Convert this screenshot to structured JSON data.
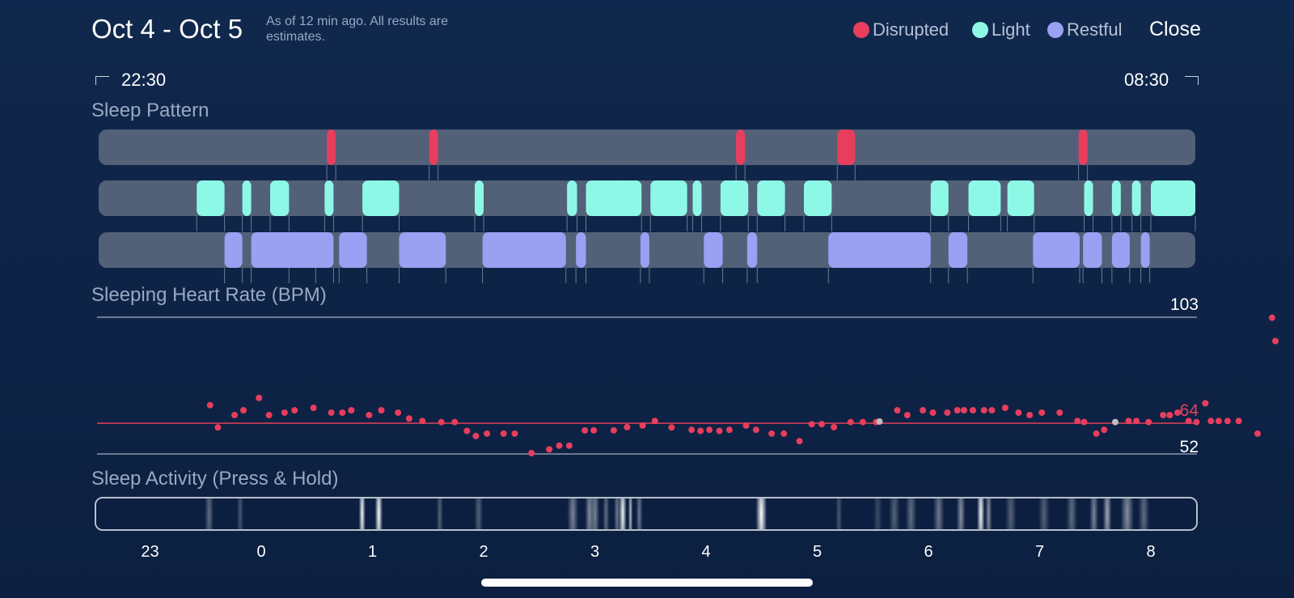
{
  "header": {
    "date_range": "Oct 4 - Oct 5",
    "note": "As of 12 min ago. All results are estimates.",
    "close_label": "Close"
  },
  "legend": [
    {
      "label": "Disrupted",
      "color": "#e83e5d"
    },
    {
      "label": "Light",
      "color": "#8ef8e6"
    },
    {
      "label": "Restful",
      "color": "#9aa0f2"
    }
  ],
  "time_range": {
    "start": "22:30",
    "end": "08:30"
  },
  "sleep_pattern": {
    "title": "Sleep Pattern",
    "disrupted": [
      [
        0.59,
        0.67
      ],
      [
        1.51,
        1.59
      ],
      [
        4.27,
        4.35
      ],
      [
        5.18,
        5.34
      ],
      [
        7.35,
        7.43
      ]
    ],
    "light": [
      [
        -0.58,
        -0.33
      ],
      [
        -0.17,
        -0.09
      ],
      [
        0.08,
        0.25
      ],
      [
        0.57,
        0.65
      ],
      [
        0.91,
        1.24
      ],
      [
        1.92,
        2.0
      ],
      [
        2.75,
        2.84
      ],
      [
        2.92,
        3.42
      ],
      [
        3.5,
        3.83
      ],
      [
        3.88,
        3.96
      ],
      [
        4.13,
        4.38
      ],
      [
        4.46,
        4.71
      ],
      [
        4.88,
        5.13
      ],
      [
        6.02,
        6.18
      ],
      [
        6.36,
        6.65
      ],
      [
        6.71,
        6.95
      ],
      [
        7.4,
        7.48
      ],
      [
        7.65,
        7.73
      ],
      [
        7.83,
        7.91
      ],
      [
        8.0,
        8.67
      ]
    ],
    "restful": [
      [
        -0.33,
        -0.17
      ],
      [
        -0.09,
        0.49
      ],
      [
        0.25,
        0.65
      ],
      [
        0.7,
        0.95
      ],
      [
        1.24,
        1.66
      ],
      [
        1.99,
        2.74
      ],
      [
        2.83,
        2.92
      ],
      [
        3.41,
        3.49
      ],
      [
        3.98,
        4.15
      ],
      [
        4.37,
        4.46
      ],
      [
        5.1,
        6.02
      ],
      [
        6.18,
        6.35
      ],
      [
        6.94,
        7.36
      ],
      [
        7.39,
        7.56
      ],
      [
        7.65,
        7.81
      ],
      [
        7.91,
        7.99
      ]
    ]
  },
  "heart_rate": {
    "title": "Sleeping Heart Rate (BPM)",
    "max_label": "103",
    "avg_label": "64",
    "min_label": "52",
    "max": 103,
    "avg": 64,
    "min": 52,
    "points": [
      [
        -0.46,
        70.2
      ],
      [
        -0.39,
        61.9
      ],
      [
        -0.24,
        66.5
      ],
      [
        -0.16,
        68.3
      ],
      [
        -0.02,
        72.9
      ],
      [
        0.07,
        66.5
      ],
      [
        0.21,
        67.4
      ],
      [
        0.3,
        68.3
      ],
      [
        0.47,
        69.2
      ],
      [
        0.63,
        67.4
      ],
      [
        0.73,
        67.4
      ],
      [
        0.81,
        68.3
      ],
      [
        0.97,
        66.5
      ],
      [
        1.08,
        68.3
      ],
      [
        1.23,
        67.4
      ],
      [
        1.33,
        65.2
      ],
      [
        1.45,
        64.3
      ],
      [
        1.62,
        63.9
      ],
      [
        1.74,
        63.9
      ],
      [
        1.85,
        60.6
      ],
      [
        1.93,
        58.7
      ],
      [
        2.03,
        59.6
      ],
      [
        2.18,
        59.6
      ],
      [
        2.28,
        59.6
      ],
      [
        2.43,
        52.3
      ],
      [
        2.59,
        53.7
      ],
      [
        2.68,
        55.1
      ],
      [
        2.77,
        55.1
      ],
      [
        2.91,
        60.8
      ],
      [
        2.99,
        60.8
      ],
      [
        3.17,
        60.8
      ],
      [
        3.29,
        62.0
      ],
      [
        3.43,
        62.6
      ],
      [
        3.54,
        64.3
      ],
      [
        3.69,
        61.9
      ],
      [
        3.87,
        61.0
      ],
      [
        3.95,
        60.6
      ],
      [
        4.03,
        61.0
      ],
      [
        4.12,
        60.6
      ],
      [
        4.21,
        61.0
      ],
      [
        4.36,
        62.6
      ],
      [
        4.45,
        61.0
      ],
      [
        4.59,
        59.6
      ],
      [
        4.7,
        59.6
      ],
      [
        4.84,
        56.8
      ],
      [
        4.95,
        63.1
      ],
      [
        5.04,
        63.1
      ],
      [
        5.15,
        62.0
      ],
      [
        5.3,
        63.9
      ],
      [
        5.41,
        63.9
      ],
      [
        5.53,
        63.9
      ],
      [
        5.56,
        64.1,
        "#bdbdbd"
      ],
      [
        5.72,
        68.3
      ],
      [
        5.81,
        66.5
      ],
      [
        5.95,
        68.3
      ],
      [
        6.04,
        67.4
      ],
      [
        6.17,
        67.4
      ],
      [
        6.26,
        68.3
      ],
      [
        6.32,
        68.3
      ],
      [
        6.4,
        68.3
      ],
      [
        6.5,
        68.3
      ],
      [
        6.57,
        68.3
      ],
      [
        6.69,
        69.2
      ],
      [
        6.81,
        67.4
      ],
      [
        6.91,
        66.5
      ],
      [
        7.02,
        67.4
      ],
      [
        7.18,
        67.4
      ],
      [
        7.34,
        64.3
      ],
      [
        7.4,
        63.9
      ],
      [
        7.51,
        59.6
      ],
      [
        7.58,
        61.0
      ],
      [
        7.68,
        63.9,
        "#bdbdbd"
      ],
      [
        7.8,
        64.3
      ],
      [
        7.87,
        64.3
      ],
      [
        7.98,
        63.9
      ],
      [
        8.11,
        66.5
      ],
      [
        8.17,
        66.5
      ],
      [
        8.24,
        67.4
      ],
      [
        8.34,
        64.3
      ],
      [
        8.41,
        63.9
      ],
      [
        8.49,
        70.9
      ],
      [
        8.54,
        64.3
      ],
      [
        8.61,
        64.3
      ],
      [
        8.69,
        64.3
      ],
      [
        8.79,
        64.3
      ],
      [
        8.96,
        59.6
      ],
      [
        9.09,
        102.8
      ],
      [
        9.12,
        94.1
      ]
    ]
  },
  "sleep_activity": {
    "title": "Sleep Activity (Press & Hold)",
    "intensity": [
      [
        -0.48,
        0.35,
        0.04
      ],
      [
        -0.2,
        0.25,
        0.03
      ],
      [
        0.9,
        0.95,
        0.03
      ],
      [
        1.05,
        0.98,
        0.035
      ],
      [
        1.6,
        0.3,
        0.03
      ],
      [
        1.95,
        0.3,
        0.04
      ],
      [
        2.8,
        0.45,
        0.05
      ],
      [
        2.95,
        0.5,
        0.04
      ],
      [
        3.0,
        0.45,
        0.04
      ],
      [
        3.1,
        0.35,
        0.03
      ],
      [
        3.2,
        0.4,
        0.03
      ],
      [
        3.25,
        0.95,
        0.035
      ],
      [
        3.32,
        0.7,
        0.02
      ],
      [
        3.4,
        0.4,
        0.03
      ],
      [
        4.5,
        1.0,
        0.05
      ],
      [
        5.2,
        0.25,
        0.03
      ],
      [
        5.55,
        0.2,
        0.04
      ],
      [
        5.7,
        0.3,
        0.05
      ],
      [
        5.85,
        0.35,
        0.05
      ],
      [
        6.1,
        0.4,
        0.05
      ],
      [
        6.3,
        0.5,
        0.04
      ],
      [
        6.48,
        0.95,
        0.035
      ],
      [
        6.55,
        0.5,
        0.03
      ],
      [
        6.75,
        0.3,
        0.05
      ],
      [
        7.05,
        0.3,
        0.05
      ],
      [
        7.3,
        0.35,
        0.05
      ],
      [
        7.5,
        0.45,
        0.04
      ],
      [
        7.62,
        0.6,
        0.04
      ],
      [
        7.8,
        0.5,
        0.06
      ],
      [
        7.95,
        0.35,
        0.05
      ]
    ]
  },
  "x_ticks": [
    "23",
    "0",
    "1",
    "2",
    "3",
    "4",
    "5",
    "6",
    "7",
    "8"
  ]
}
